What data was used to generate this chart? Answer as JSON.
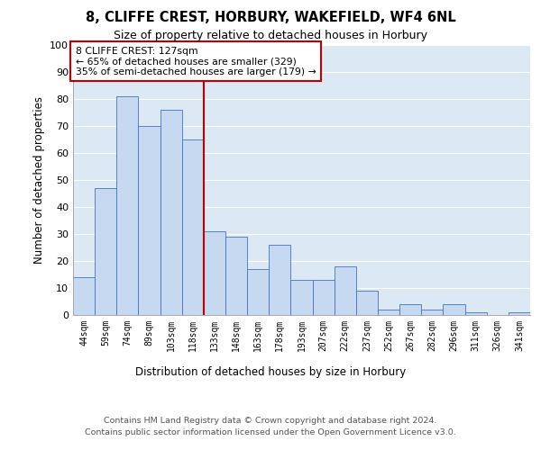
{
  "title1": "8, CLIFFE CREST, HORBURY, WAKEFIELD, WF4 6NL",
  "title2": "Size of property relative to detached houses in Horbury",
  "xlabel": "Distribution of detached houses by size in Horbury",
  "ylabel": "Number of detached properties",
  "categories": [
    "44sqm",
    "59sqm",
    "74sqm",
    "89sqm",
    "103sqm",
    "118sqm",
    "133sqm",
    "148sqm",
    "163sqm",
    "178sqm",
    "193sqm",
    "207sqm",
    "222sqm",
    "237sqm",
    "252sqm",
    "267sqm",
    "282sqm",
    "296sqm",
    "311sqm",
    "326sqm",
    "341sqm"
  ],
  "values": [
    14,
    47,
    81,
    70,
    76,
    65,
    31,
    29,
    17,
    26,
    13,
    13,
    18,
    9,
    2,
    4,
    2,
    4,
    1,
    0,
    1
  ],
  "bar_color": "#c6d9f0",
  "bar_edge_color": "#4472c4",
  "vline_x": 5.5,
  "vline_color": "#c00000",
  "annotation_text": "8 CLIFFE CREST: 127sqm\n← 65% of detached houses are smaller (329)\n35% of semi-detached houses are larger (179) →",
  "ylim": [
    0,
    100
  ],
  "yticks": [
    0,
    10,
    20,
    30,
    40,
    50,
    60,
    70,
    80,
    90,
    100
  ],
  "plot_bg_color": "#dce9f5",
  "annotation_box_color": "#c00000",
  "grid_color": "#ffffff",
  "footer_line1": "Contains HM Land Registry data © Crown copyright and database right 2024.",
  "footer_line2": "Contains public sector information licensed under the Open Government Licence v3.0."
}
